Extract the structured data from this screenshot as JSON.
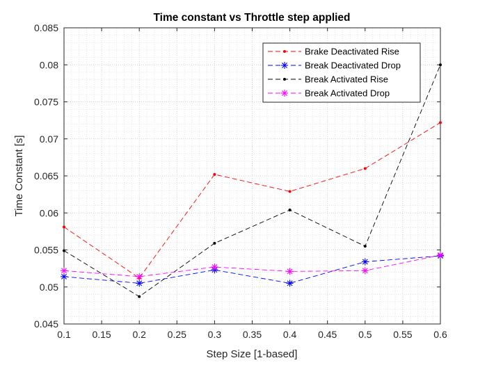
{
  "chart_data": {
    "type": "line",
    "title": "Time constant vs Throttle step applied",
    "xlabel": "Step Size [1-based]",
    "ylabel": "Time Constant [s]",
    "xlim": [
      0.1,
      0.6
    ],
    "ylim": [
      0.045,
      0.085
    ],
    "x": [
      0.1,
      0.2,
      0.3,
      0.4,
      0.5,
      0.6
    ],
    "xticks": [
      "0.1",
      "0.15",
      "0.2",
      "0.25",
      "0.3",
      "0.35",
      "0.4",
      "0.45",
      "0.5",
      "0.55",
      "0.6"
    ],
    "yticks": [
      "0.045",
      "0.05",
      "0.055",
      "0.06",
      "0.065",
      "0.07",
      "0.075",
      "0.08",
      "0.085"
    ],
    "grid": "major and minor, dotted",
    "legend_position": "top-right",
    "series": [
      {
        "name": "Brake Deactivated Rise",
        "color": "#ff0000",
        "marker": "dot",
        "line": "dashed",
        "values": [
          0.0581,
          0.0512,
          0.0652,
          0.0629,
          0.066,
          0.0722
        ]
      },
      {
        "name": "Break Deactivated Drop",
        "color": "#0000ff",
        "marker": "asterisk",
        "line": "dashed",
        "values": [
          0.0514,
          0.0505,
          0.0523,
          0.0505,
          0.0534,
          0.0542
        ]
      },
      {
        "name": "Break Activated Rise",
        "color": "#000000",
        "marker": "dot",
        "line": "dashed",
        "values": [
          0.0549,
          0.0487,
          0.0559,
          0.0604,
          0.0555,
          0.08
        ]
      },
      {
        "name": "Break Activated Drop",
        "color": "#ff00ff",
        "marker": "asterisk",
        "line": "dashed",
        "values": [
          0.0522,
          0.0514,
          0.0527,
          0.0521,
          0.0522,
          0.0543
        ]
      }
    ]
  }
}
